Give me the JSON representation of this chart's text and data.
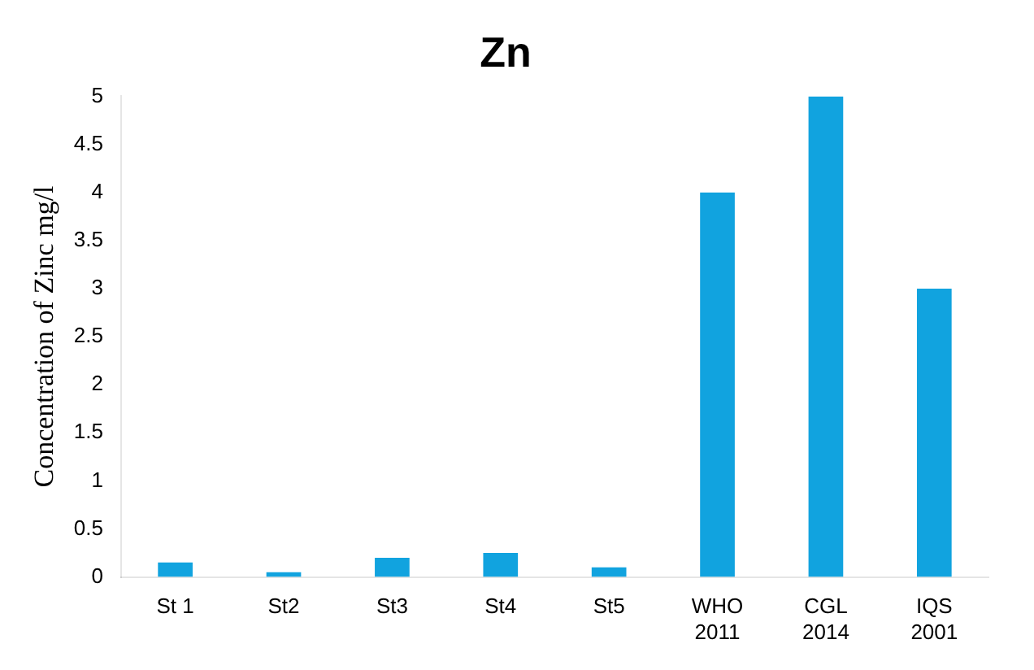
{
  "chart_data": {
    "type": "bar",
    "title": "Zn",
    "ylabel": "Concentration of Zinc mg/l",
    "categories": [
      "St 1",
      "St2",
      "St3",
      "St4",
      "St5",
      "WHO\n2011",
      "CGL\n2014",
      "IQS\n2001"
    ],
    "values": [
      0.15,
      0.05,
      0.2,
      0.25,
      0.1,
      4,
      5,
      3
    ],
    "color": "#11a3df",
    "ylim": [
      0,
      5
    ],
    "yticks": [
      0,
      0.5,
      1,
      1.5,
      2,
      2.5,
      3,
      3.5,
      4,
      4.5,
      5
    ],
    "grid": false,
    "legend": false
  }
}
